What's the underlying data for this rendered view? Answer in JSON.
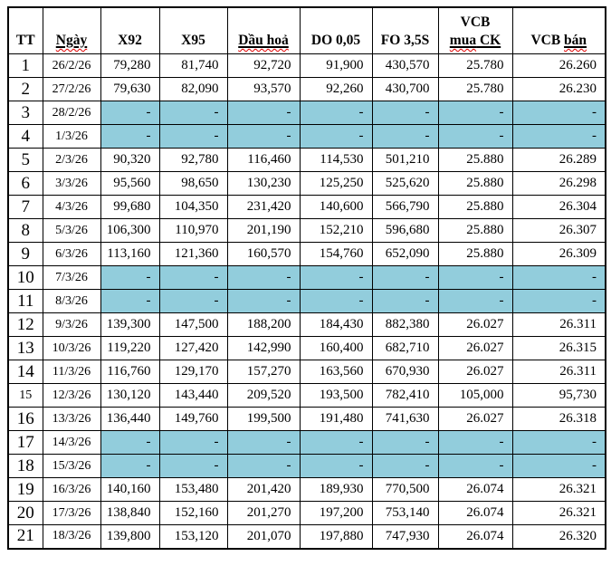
{
  "table": {
    "colors": {
      "holiday_fill": "#92CDDC",
      "border": "#000000",
      "squiggle": "#E00000",
      "text": "#000000"
    },
    "header": [
      {
        "key": "tt",
        "segments": [
          {
            "text": "TT"
          }
        ]
      },
      {
        "key": "ngay",
        "segments": [
          {
            "text": "Ngày",
            "underline": true,
            "misspelled": true
          }
        ]
      },
      {
        "key": "x92",
        "segments": [
          {
            "text": "X92"
          }
        ]
      },
      {
        "key": "x95",
        "segments": [
          {
            "text": "X95"
          }
        ]
      },
      {
        "key": "dau_hoa",
        "segments": [
          {
            "text": "Dầu hoả",
            "underline": true,
            "misspelled": true
          }
        ]
      },
      {
        "key": "do_0_05",
        "segments": [
          {
            "text": "DO 0,05"
          }
        ]
      },
      {
        "key": "fo_3_5s",
        "segments": [
          {
            "text": "FO 3,5S"
          }
        ]
      },
      {
        "key": "vcb_mua_ck",
        "segments": [
          {
            "text": "VCB"
          },
          {
            "text": "\n"
          },
          {
            "text": "mua",
            "underline": true,
            "misspelled": true
          },
          {
            "text": " CK",
            "underline": true
          }
        ]
      },
      {
        "key": "vcb_ban",
        "segments": [
          {
            "text": "VCB "
          },
          {
            "text": "bán",
            "underline": true,
            "misspelled": true
          }
        ]
      }
    ],
    "rows": [
      {
        "tt": "1",
        "date": "26/2/26",
        "holiday": false,
        "values": [
          "79,280",
          "81,740",
          "92,720",
          "91,900",
          "430,570",
          "25.780",
          "26.260"
        ]
      },
      {
        "tt": "2",
        "date": "27/2/26",
        "holiday": false,
        "values": [
          "79,630",
          "82,090",
          "93,570",
          "92,260",
          "430,700",
          "25.780",
          "26.230"
        ]
      },
      {
        "tt": "3",
        "date": "28/2/26",
        "holiday": true,
        "values": [
          "-",
          "-",
          "-",
          "-",
          "-",
          "-",
          "-"
        ]
      },
      {
        "tt": "4",
        "date": "1/3/26",
        "holiday": true,
        "values": [
          "-",
          "-",
          "-",
          "-",
          "-",
          "-",
          "-"
        ]
      },
      {
        "tt": "5",
        "date": "2/3/26",
        "holiday": false,
        "values": [
          "90,320",
          "92,780",
          "116,460",
          "114,530",
          "501,210",
          "25.880",
          "26.289"
        ]
      },
      {
        "tt": "6",
        "date": "3/3/26",
        "holiday": false,
        "values": [
          "95,560",
          "98,650",
          "130,230",
          "125,250",
          "525,620",
          "25.880",
          "26.298"
        ]
      },
      {
        "tt": "7",
        "date": "4/3/26",
        "holiday": false,
        "values": [
          "99,680",
          "104,350",
          "231,420",
          "140,600",
          "566,790",
          "25.880",
          "26.304"
        ]
      },
      {
        "tt": "8",
        "date": "5/3/26",
        "holiday": false,
        "values": [
          "106,300",
          "110,970",
          "201,190",
          "152,210",
          "596,680",
          "25.880",
          "26.307"
        ]
      },
      {
        "tt": "9",
        "date": "6/3/26",
        "holiday": false,
        "values": [
          "113,160",
          "121,360",
          "160,570",
          "154,760",
          "652,090",
          "25.880",
          "26.309"
        ]
      },
      {
        "tt": "10",
        "date": "7/3/26",
        "holiday": true,
        "values": [
          "-",
          "-",
          "-",
          "-",
          "-",
          "-",
          "-"
        ]
      },
      {
        "tt": "11",
        "date": "8/3/26",
        "holiday": true,
        "values": [
          "-",
          "-",
          "-",
          "-",
          "-",
          "-",
          "-"
        ]
      },
      {
        "tt": "12",
        "date": "9/3/26",
        "holiday": false,
        "values": [
          "139,300",
          "147,500",
          "188,200",
          "184,430",
          "882,380",
          "26.027",
          "26.311"
        ]
      },
      {
        "tt": "13",
        "date": "10/3/26",
        "holiday": false,
        "values": [
          "119,220",
          "127,420",
          "142,990",
          "160,400",
          "682,710",
          "26.027",
          "26.315"
        ]
      },
      {
        "tt": "14",
        "date": "11/3/26",
        "holiday": false,
        "values": [
          "116,760",
          "129,170",
          "157,270",
          "163,560",
          "670,930",
          "26.027",
          "26.311"
        ]
      },
      {
        "tt": "15",
        "date": "12/3/26",
        "holiday": false,
        "small_tt": true,
        "values": [
          "130,120",
          "143,440",
          "209,520",
          "193,500",
          "782,410",
          "105,000",
          "95,730"
        ]
      },
      {
        "tt": "16",
        "date": "13/3/26",
        "holiday": false,
        "values": [
          "136,440",
          "149,760",
          "199,500",
          "191,480",
          "741,630",
          "26.027",
          "26.318"
        ]
      },
      {
        "tt": "17",
        "date": "14/3/26",
        "holiday": true,
        "values": [
          "-",
          "-",
          "-",
          "-",
          "-",
          "-",
          "-"
        ]
      },
      {
        "tt": "18",
        "date": "15/3/26",
        "holiday": true,
        "values": [
          "-",
          "-",
          "-",
          "-",
          "-",
          "-",
          "-"
        ]
      },
      {
        "tt": "19",
        "date": "16/3/26",
        "holiday": false,
        "values": [
          "140,160",
          "153,480",
          "201,420",
          "189,930",
          "770,500",
          "26.074",
          "26.321"
        ]
      },
      {
        "tt": "20",
        "date": "17/3/26",
        "holiday": false,
        "values": [
          "138,840",
          "152,160",
          "201,270",
          "197,200",
          "753,140",
          "26.074",
          "26.321"
        ]
      },
      {
        "tt": "21",
        "date": "18/3/26",
        "holiday": false,
        "values": [
          "139,800",
          "153,120",
          "201,070",
          "197,880",
          "747,930",
          "26.074",
          "26.320"
        ]
      }
    ]
  }
}
